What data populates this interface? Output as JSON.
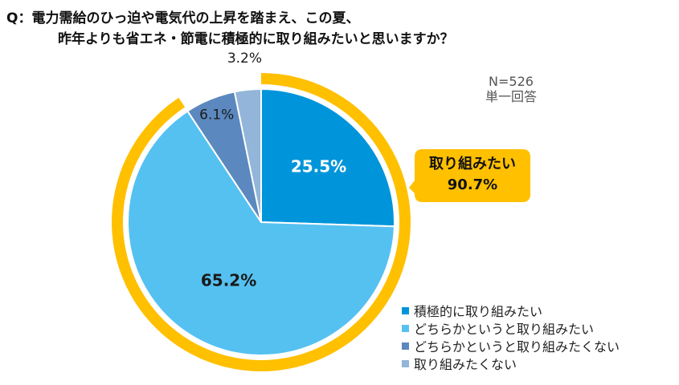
{
  "question": {
    "line1": "Q：電力需給のひっ迫や電気代の上昇を踏まえ、この夏、",
    "line2": "昨年よりも省エネ・節電に積極的に取り組みたいと思いますか？"
  },
  "meta": {
    "n": "N=526",
    "type": "単一回答"
  },
  "callout": {
    "label": "取り組みたい",
    "value": "90.7%"
  },
  "chart_data": {
    "type": "pie",
    "title": "Q：電力需給のひっ迫や電気代の上昇を踏まえ、この夏、昨年よりも省エネ・節電に積極的に取り組みたいと思いますか？",
    "categories": [
      "積極的に取り組みたい",
      "どちらかというと取り組みたい",
      "どちらかというと取り組みたくない",
      "取り組みたくない"
    ],
    "values": [
      25.5,
      65.2,
      6.1,
      3.2
    ],
    "labels": [
      "25.5%",
      "65.2%",
      "6.1%",
      "3.2%"
    ],
    "colors": [
      "#0095DA",
      "#55C1F1",
      "#5B88BE",
      "#92B5D9"
    ],
    "highlight": {
      "color": "#FFC000",
      "covers": [
        0,
        1
      ]
    },
    "legend_position": "bottom-right"
  }
}
